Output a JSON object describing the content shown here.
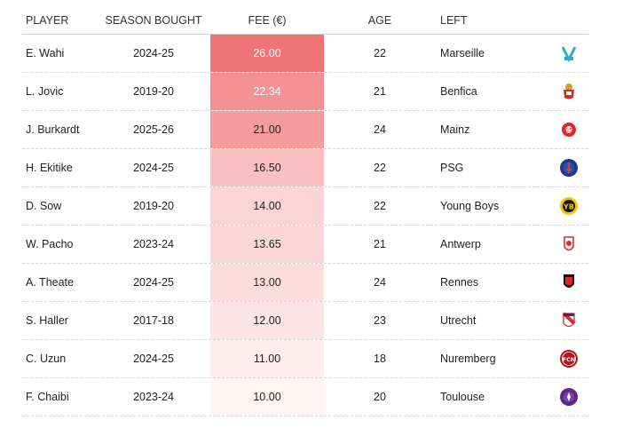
{
  "headers": {
    "player": "PLAYER",
    "season": "SEASON BOUGHT",
    "fee": "FEE (€)",
    "age": "AGE",
    "left": "LEFT"
  },
  "rows": [
    {
      "player": "E. Wahi",
      "season": "2024-25",
      "fee": "26.00",
      "age": "22",
      "left": "Marseille",
      "logo": "marseille-crest-icon"
    },
    {
      "player": "L. Jovic",
      "season": "2019-20",
      "fee": "22.34",
      "age": "21",
      "left": "Benfica",
      "logo": "benfica-crest-icon"
    },
    {
      "player": "J. Burkardt",
      "season": "2025-26",
      "fee": "21.00",
      "age": "24",
      "left": "Mainz",
      "logo": "mainz-crest-icon"
    },
    {
      "player": "H. Ekitike",
      "season": "2024-25",
      "fee": "16.50",
      "age": "22",
      "left": "PSG",
      "logo": "psg-crest-icon"
    },
    {
      "player": "D. Sow",
      "season": "2019-20",
      "fee": "14.00",
      "age": "22",
      "left": "Young Boys",
      "logo": "young-boys-crest-icon"
    },
    {
      "player": "W. Pacho",
      "season": "2023-24",
      "fee": "13.65",
      "age": "21",
      "left": "Antwerp",
      "logo": "antwerp-crest-icon"
    },
    {
      "player": "A. Theate",
      "season": "2024-25",
      "fee": "13.00",
      "age": "24",
      "left": "Rennes",
      "logo": "rennes-crest-icon"
    },
    {
      "player": "S. Haller",
      "season": "2017-18",
      "fee": "12.00",
      "age": "23",
      "left": "Utrecht",
      "logo": "utrecht-crest-icon"
    },
    {
      "player": "C. Uzun",
      "season": "2024-25",
      "fee": "11.00",
      "age": "18",
      "left": "Nuremberg",
      "logo": "nuremberg-crest-icon"
    },
    {
      "player": "F. Chaibi",
      "season": "2023-24",
      "fee": "10.00",
      "age": "20",
      "left": "Toulouse",
      "logo": "toulouse-crest-icon"
    }
  ],
  "chart_data": {
    "type": "table",
    "columns": [
      "PLAYER",
      "SEASON BOUGHT",
      "FEE (€)",
      "AGE",
      "LEFT"
    ],
    "fee_values": [
      26.0,
      22.34,
      21.0,
      16.5,
      14.0,
      13.65,
      13.0,
      12.0,
      11.0,
      10.0
    ],
    "heat_color": "#f07376",
    "heat_low_color": "#fff5f5"
  }
}
